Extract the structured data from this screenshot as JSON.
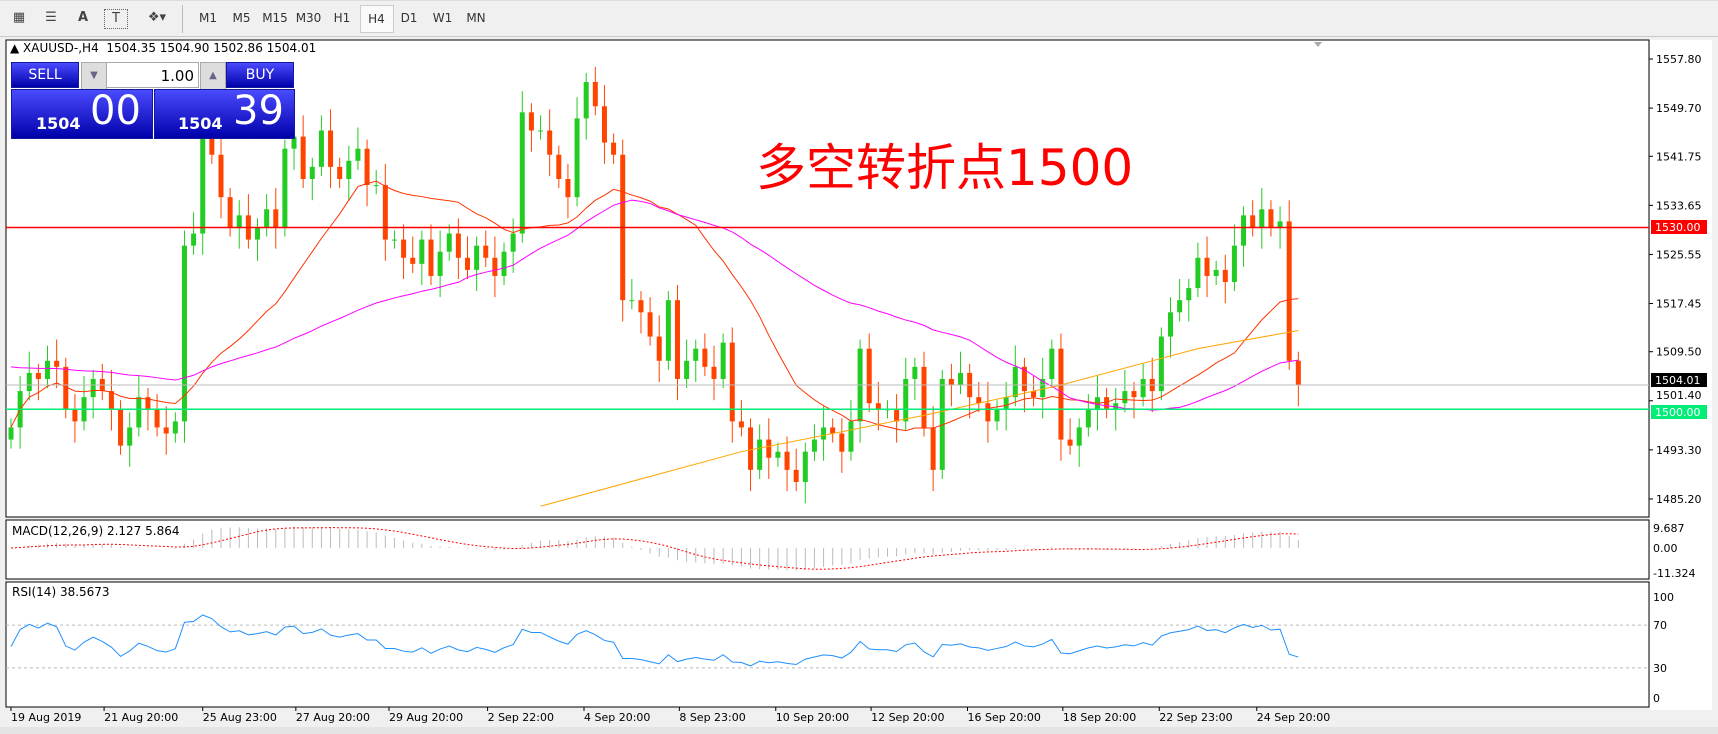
{
  "toolbar": {
    "icons": [
      "indicators-icon",
      "fibo-icon",
      "text-icon",
      "text-label-icon",
      "arrows-icon"
    ],
    "text_icon": "A",
    "label_icon": "T",
    "timeframes": [
      "M1",
      "M5",
      "M15",
      "M30",
      "H1",
      "H4",
      "D1",
      "W1",
      "MN"
    ],
    "active_timeframe": "H4"
  },
  "chart_header": "XAUUSD-,H4  1504.35 1504.90 1502.86 1504.01",
  "trade_panel": {
    "sell_label": "SELL",
    "buy_label": "BUY",
    "lot": "1.00",
    "sell_big": "1504",
    "sell_small": "00",
    "buy_big": "1504",
    "buy_small": "39"
  },
  "annotation": {
    "text": "多空转折点1500",
    "color": "#ff0000"
  },
  "colors": {
    "bull": "#22cc22",
    "bear": "#ff4400",
    "ma_fast": "#ff3300",
    "ma_slow": "#ff00ff",
    "ma_long": "#ffa500",
    "resistance": "#ff0000",
    "support": "#00ee77",
    "rsi": "#1e90ff",
    "macd_signal": "#ff0000"
  },
  "chart_data": {
    "type": "candlestick",
    "symbol": "XAUUSD-",
    "timeframe": "H4",
    "ylim": [
      1483,
      1560
    ],
    "price_ticks": [
      "1557.80",
      "1549.70",
      "1541.75",
      "1533.65",
      "1525.55",
      "1517.45",
      "1509.50",
      "1501.40",
      "1493.30",
      "1485.20"
    ],
    "closes": [
      1497,
      1503,
      1506,
      1505,
      1508,
      1507,
      1500,
      1498,
      1502,
      1505,
      1503,
      1500,
      1494,
      1497,
      1502,
      1500,
      1497,
      1496,
      1498,
      1527,
      1529,
      1545,
      1542,
      1535,
      1530,
      1532,
      1528,
      1530,
      1533,
      1530,
      1543,
      1545,
      1538,
      1540,
      1546,
      1540,
      1538,
      1541,
      1543,
      1537,
      1537,
      1528,
      1528,
      1525,
      1524,
      1528,
      1522,
      1526,
      1529,
      1525,
      1523,
      1527,
      1525,
      1522,
      1526,
      1529,
      1549,
      1546,
      1546,
      1542,
      1538,
      1535,
      1548,
      1554,
      1550,
      1544,
      1542,
      1518,
      1518,
      1516,
      1512,
      1508,
      1518,
      1505,
      1508,
      1510,
      1507,
      1505,
      1511,
      1498,
      1497,
      1490,
      1495,
      1492,
      1493,
      1490,
      1488,
      1493,
      1495,
      1497,
      1496,
      1493,
      1498,
      1510,
      1501,
      1500,
      1500,
      1498,
      1505,
      1507,
      1497,
      1490,
      1505,
      1504,
      1506,
      1502,
      1501,
      1498,
      1500,
      1502,
      1507,
      1503,
      1502,
      1505,
      1510,
      1495,
      1494,
      1497,
      1500,
      1502,
      1500,
      1501,
      1503,
      1502,
      1505,
      1503,
      1512,
      1516,
      1518,
      1520,
      1525,
      1522,
      1523,
      1521,
      1527,
      1532,
      1530,
      1533,
      1530,
      1531,
      1508,
      1504
    ],
    "long_ma_points": [
      [
        58,
        1484
      ],
      [
        80,
        1493
      ],
      [
        100,
        1499
      ],
      [
        115,
        1504
      ],
      [
        130,
        1510
      ],
      [
        141,
        1513
      ]
    ],
    "lines": [
      {
        "price": 1530.0,
        "label": "1530.00"
      },
      {
        "price": 1500.0,
        "label": "1500.00"
      }
    ],
    "current_price": "1504.01",
    "date_labels": [
      "19 Aug 2019",
      "21 Aug 20:00",
      "25 Aug 23:00",
      "27 Aug 20:00",
      "29 Aug 20:00",
      "2 Sep 22:00",
      "4 Sep 20:00",
      "8 Sep 23:00",
      "10 Sep 20:00",
      "12 Sep 20:00",
      "16 Sep 20:00",
      "18 Sep 20:00",
      "22 Sep 23:00",
      "24 Sep 20:00"
    ],
    "macd": {
      "label": "MACD(12,26,9) 2.127 5.864",
      "ticks": [
        "9.687",
        "0.00",
        "-11.324"
      ]
    },
    "rsi": {
      "label": "RSI(14) 38.5673",
      "ticks": [
        "100",
        "70",
        "30",
        "0"
      ],
      "levels": [
        70,
        30
      ]
    }
  }
}
